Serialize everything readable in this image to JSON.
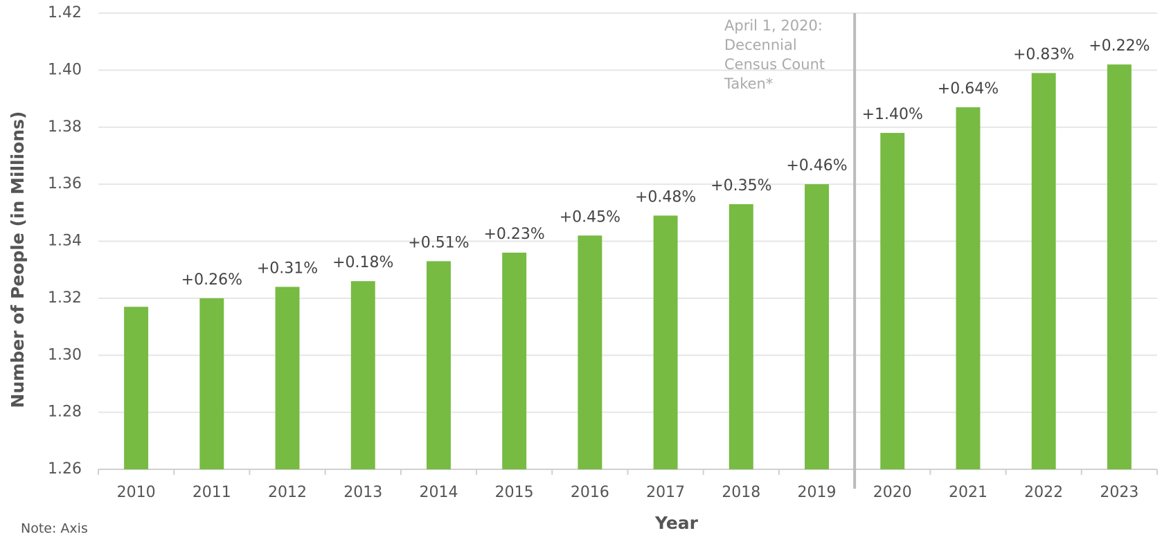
{
  "chart_data": {
    "type": "bar",
    "x_label": "Year",
    "y_label": "Number of People (in Millions)",
    "categories": [
      "2010",
      "2011",
      "2012",
      "2013",
      "2014",
      "2015",
      "2016",
      "2017",
      "2018",
      "2019",
      "2020",
      "2021",
      "2022",
      "2023"
    ],
    "values": [
      1.317,
      1.32,
      1.324,
      1.326,
      1.333,
      1.336,
      1.342,
      1.349,
      1.353,
      1.36,
      1.378,
      1.387,
      1.399,
      1.402
    ],
    "growth_labels": [
      null,
      "+0.26%",
      "+0.31%",
      "+0.18%",
      "+0.51%",
      "+0.23%",
      "+0.45%",
      "+0.48%",
      "+0.35%",
      "+0.46%",
      "+1.40%",
      "+0.64%",
      "+0.83%",
      "+0.22%"
    ],
    "color": "#77bb43",
    "ylim": [
      1.26,
      1.42
    ],
    "yticks": [
      1.26,
      1.28,
      {
        "value": 1.3,
        "label": "1.30"
      },
      1.32,
      1.34,
      1.36,
      1.38,
      {
        "value": 1.4,
        "label": "1.40"
      },
      1.42
    ],
    "grid": true,
    "annotation": [
      "April 1, 2020:",
      "Decennial",
      "Census Count",
      "Taken*"
    ],
    "note": "Note: Axis"
  }
}
